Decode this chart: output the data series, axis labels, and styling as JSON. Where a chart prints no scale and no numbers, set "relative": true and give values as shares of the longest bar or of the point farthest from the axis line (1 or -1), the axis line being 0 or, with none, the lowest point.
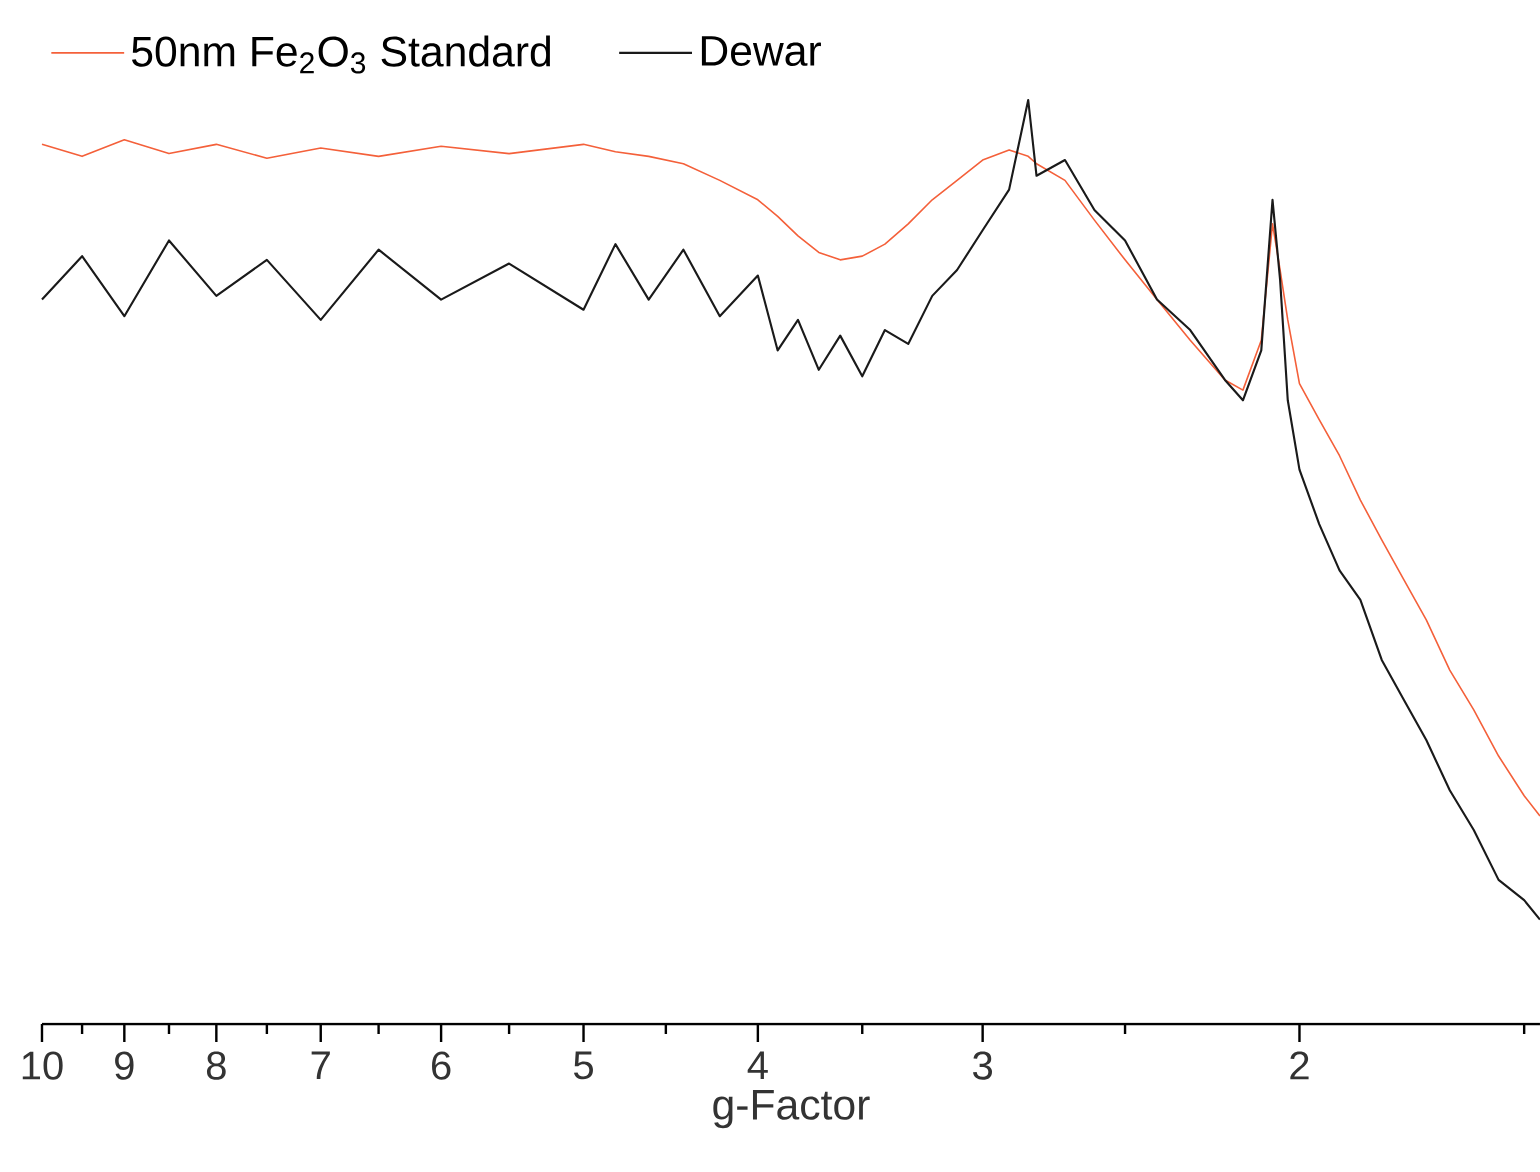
{
  "chart_data": {
    "type": "line",
    "xlabel": "g-Factor",
    "relative": true,
    "log": "x",
    "marker": "none",
    "legend": "top left",
    "xlim": [
      10,
      1.47
    ],
    "xticks": [
      10,
      9,
      8,
      7,
      6,
      5,
      4,
      3,
      2,
      {
        "value": 9.5,
        "label": null
      },
      {
        "value": 8.5,
        "label": null
      },
      {
        "value": 7.5,
        "label": null
      },
      {
        "value": 6.5,
        "label": null
      },
      {
        "value": 5.5,
        "label": null
      },
      {
        "value": 4.5,
        "label": null
      },
      {
        "value": 3.5,
        "label": null
      },
      {
        "value": 2.5,
        "label": null
      },
      {
        "value": 1.5,
        "label": null
      }
    ],
    "x": [
      10,
      9.5,
      9,
      8.5,
      8,
      7.5,
      7,
      6.5,
      6,
      5.5,
      5,
      4.8,
      4.6,
      4.4,
      4.2,
      4,
      3.9,
      3.8,
      3.7,
      3.6,
      3.5,
      3.4,
      3.3,
      3.2,
      3.1,
      3,
      2.9,
      2.83,
      2.8,
      2.7,
      2.6,
      2.5,
      2.4,
      2.3,
      2.2,
      2.15,
      2.1,
      2.07,
      2.05,
      2.03,
      2,
      1.95,
      1.9,
      1.85,
      1.8,
      1.75,
      1.7,
      1.65,
      1.6,
      1.55,
      1.5,
      1.47
    ],
    "series": [
      {
        "name": "50nm Fe$_{2}$O$_{3}$ Standard",
        "color": "#f4603a",
        "values": [
          0.952,
          0.939,
          0.957,
          0.942,
          0.952,
          0.937,
          0.948,
          0.939,
          0.95,
          0.942,
          0.952,
          0.944,
          0.939,
          0.931,
          0.913,
          0.892,
          0.874,
          0.853,
          0.835,
          0.827,
          0.831,
          0.844,
          0.866,
          0.892,
          0.913,
          0.935,
          0.946,
          0.939,
          0.931,
          0.913,
          0.87,
          0.827,
          0.784,
          0.74,
          0.697,
          0.686,
          0.74,
          0.866,
          0.816,
          0.762,
          0.693,
          0.654,
          0.615,
          0.567,
          0.524,
          0.481,
          0.437,
          0.383,
          0.34,
          0.29,
          0.247,
          0.225
        ]
      },
      {
        "name": "Dewar",
        "color": "#1a1a1a",
        "values": [
          0.784,
          0.831,
          0.766,
          0.848,
          0.788,
          0.827,
          0.762,
          0.838,
          0.784,
          0.823,
          0.773,
          0.844,
          0.784,
          0.838,
          0.766,
          0.81,
          0.729,
          0.762,
          0.708,
          0.745,
          0.701,
          0.751,
          0.736,
          0.788,
          0.816,
          0.859,
          0.903,
          1.0,
          0.918,
          0.935,
          0.881,
          0.848,
          0.784,
          0.751,
          0.697,
          0.675,
          0.729,
          0.892,
          0.805,
          0.675,
          0.6,
          0.541,
          0.491,
          0.459,
          0.394,
          0.351,
          0.307,
          0.253,
          0.21,
          0.156,
          0.134,
          0.113
        ]
      }
    ]
  }
}
